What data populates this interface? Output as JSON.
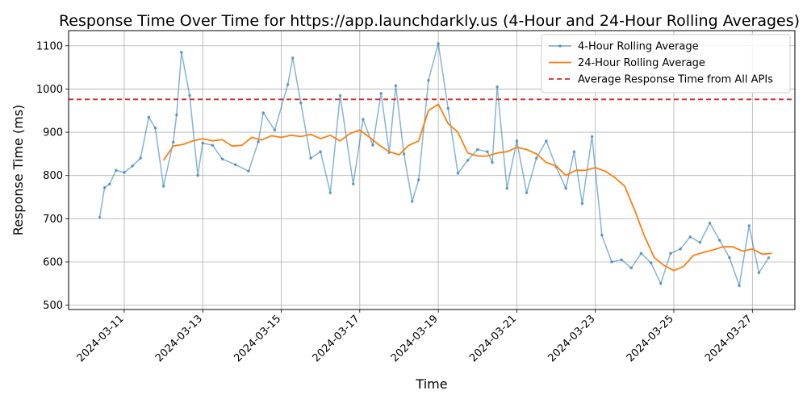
{
  "chart_data": {
    "type": "line",
    "title": "Response Time Over Time for https://app.launchdarkly.us (4-Hour and 24-Hour Rolling Averages)",
    "xlabel": "Time",
    "ylabel": "Response Time (ms)",
    "x_range": [
      "2024-03-09T14:00",
      "2024-03-28T02:00"
    ],
    "ylim": [
      490,
      1135
    ],
    "x_ticks": [
      "2024-03-11",
      "2024-03-13",
      "2024-03-15",
      "2024-03-17",
      "2024-03-19",
      "2024-03-21",
      "2024-03-23",
      "2024-03-25",
      "2024-03-27"
    ],
    "y_ticks": [
      500,
      600,
      700,
      800,
      900,
      1000,
      1100
    ],
    "grid": true,
    "legend_position": "top-right",
    "series": [
      {
        "name": "4-Hour Rolling Average",
        "color": "#1f77b4",
        "style": "line-with-point-markers",
        "x": [
          "2024-03-10T09:00",
          "2024-03-10T12:00",
          "2024-03-10T15:00",
          "2024-03-10T19:00",
          "2024-03-11T00:00",
          "2024-03-11T05:00",
          "2024-03-11T10:00",
          "2024-03-11T15:00",
          "2024-03-11T19:00",
          "2024-03-12T00:00",
          "2024-03-12T06:00",
          "2024-03-12T08:00",
          "2024-03-12T11:00",
          "2024-03-12T16:00",
          "2024-03-12T21:00",
          "2024-03-13T00:00",
          "2024-03-13T06:00",
          "2024-03-13T12:00",
          "2024-03-13T20:00",
          "2024-03-14T04:00",
          "2024-03-14T10:00",
          "2024-03-14T13:00",
          "2024-03-14T20:00",
          "2024-03-15T04:00",
          "2024-03-15T07:00",
          "2024-03-15T12:00",
          "2024-03-15T18:00",
          "2024-03-16T00:00",
          "2024-03-16T06:00",
          "2024-03-16T12:00",
          "2024-03-16T20:00",
          "2024-03-17T02:00",
          "2024-03-17T08:00",
          "2024-03-17T13:00",
          "2024-03-17T18:00",
          "2024-03-17T22:00",
          "2024-03-18T03:00",
          "2024-03-18T08:00",
          "2024-03-18T12:00",
          "2024-03-18T18:00",
          "2024-03-19T00:00",
          "2024-03-19T06:00",
          "2024-03-19T12:00",
          "2024-03-19T18:00",
          "2024-03-20T00:00",
          "2024-03-20T06:00",
          "2024-03-20T09:00",
          "2024-03-20T12:00",
          "2024-03-20T18:00",
          "2024-03-21T00:00",
          "2024-03-21T06:00",
          "2024-03-21T12:00",
          "2024-03-21T18:00",
          "2024-03-22T00:00",
          "2024-03-22T06:00",
          "2024-03-22T11:00",
          "2024-03-22T16:00",
          "2024-03-22T22:00",
          "2024-03-23T04:00",
          "2024-03-23T10:00",
          "2024-03-23T16:00",
          "2024-03-23T22:00",
          "2024-03-24T04:00",
          "2024-03-24T10:00",
          "2024-03-24T16:00",
          "2024-03-24T22:00",
          "2024-03-25T04:00",
          "2024-03-25T10:00",
          "2024-03-25T16:00",
          "2024-03-25T22:00",
          "2024-03-26T04:00",
          "2024-03-26T10:00",
          "2024-03-26T16:00",
          "2024-03-26T22:00",
          "2024-03-27T04:00",
          "2024-03-27T10:00"
        ],
        "y": [
          703,
          772,
          780,
          812,
          807,
          822,
          840,
          935,
          910,
          775,
          877,
          940,
          1085,
          985,
          800,
          875,
          870,
          838,
          825,
          810,
          878,
          945,
          905,
          1010,
          1072,
          968,
          840,
          855,
          760,
          985,
          780,
          930,
          870,
          990,
          853,
          1008,
          850,
          740,
          790,
          1020,
          1105,
          955,
          805,
          835,
          860,
          855,
          830,
          1005,
          770,
          880,
          760,
          840,
          880,
          820,
          770,
          855,
          735,
          890,
          662,
          600,
          605,
          586,
          620,
          598,
          550,
          620,
          630,
          658,
          645,
          690,
          650,
          610,
          545,
          684,
          575,
          610
        ]
      },
      {
        "name": "24-Hour Rolling Average",
        "color": "#ff7f0e",
        "style": "line",
        "x": [
          "2024-03-12T00:00",
          "2024-03-12T06:00",
          "2024-03-12T12:00",
          "2024-03-12T18:00",
          "2024-03-13T00:00",
          "2024-03-13T06:00",
          "2024-03-13T12:00",
          "2024-03-13T18:00",
          "2024-03-14T00:00",
          "2024-03-14T06:00",
          "2024-03-14T12:00",
          "2024-03-14T18:00",
          "2024-03-15T00:00",
          "2024-03-15T06:00",
          "2024-03-15T12:00",
          "2024-03-15T18:00",
          "2024-03-16T00:00",
          "2024-03-16T06:00",
          "2024-03-16T12:00",
          "2024-03-16T18:00",
          "2024-03-17T00:00",
          "2024-03-17T06:00",
          "2024-03-17T12:00",
          "2024-03-17T18:00",
          "2024-03-18T00:00",
          "2024-03-18T06:00",
          "2024-03-18T12:00",
          "2024-03-18T18:00",
          "2024-03-19T00:00",
          "2024-03-19T06:00",
          "2024-03-19T12:00",
          "2024-03-19T18:00",
          "2024-03-20T00:00",
          "2024-03-20T06:00",
          "2024-03-20T12:00",
          "2024-03-20T18:00",
          "2024-03-21T00:00",
          "2024-03-21T06:00",
          "2024-03-21T12:00",
          "2024-03-21T18:00",
          "2024-03-22T00:00",
          "2024-03-22T06:00",
          "2024-03-22T12:00",
          "2024-03-22T18:00",
          "2024-03-23T00:00",
          "2024-03-23T06:00",
          "2024-03-23T12:00",
          "2024-03-23T18:00",
          "2024-03-24T00:00",
          "2024-03-24T06:00",
          "2024-03-24T12:00",
          "2024-03-24T18:00",
          "2024-03-25T00:00",
          "2024-03-25T06:00",
          "2024-03-25T12:00",
          "2024-03-25T18:00",
          "2024-03-26T00:00",
          "2024-03-26T06:00",
          "2024-03-26T12:00",
          "2024-03-26T18:00",
          "2024-03-27T00:00",
          "2024-03-27T06:00",
          "2024-03-27T12:00"
        ],
        "y": [
          835,
          868,
          872,
          880,
          885,
          880,
          883,
          868,
          870,
          888,
          882,
          892,
          888,
          893,
          890,
          895,
          885,
          893,
          880,
          897,
          905,
          888,
          870,
          855,
          848,
          870,
          880,
          950,
          965,
          920,
          900,
          852,
          845,
          845,
          852,
          855,
          865,
          860,
          850,
          830,
          822,
          800,
          812,
          812,
          818,
          810,
          795,
          775,
          720,
          660,
          610,
          592,
          580,
          590,
          615,
          622,
          628,
          635,
          635,
          625,
          630,
          618,
          620
        ]
      }
    ],
    "reference_lines": [
      {
        "name": "Average Response Time from All APIs",
        "y": 976,
        "color": "#d62728",
        "style": "dashed"
      }
    ]
  }
}
